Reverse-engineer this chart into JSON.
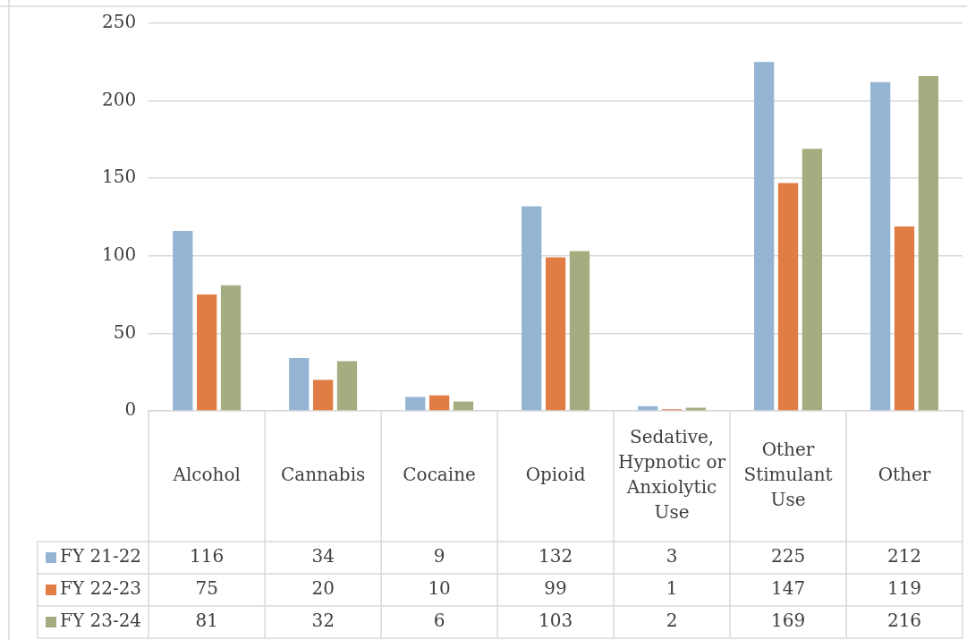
{
  "chart_data": {
    "type": "bar",
    "categories": [
      "Alcohol",
      "Cannabis",
      "Cocaine",
      "Opioid",
      "Sedative, Hypnotic or Anxiolytic Use",
      "Other Stimulant Use",
      "Other"
    ],
    "series": [
      {
        "name": "FY 21-22",
        "color": "#93b5d3",
        "values": [
          116,
          34,
          9,
          132,
          3,
          225,
          212
        ]
      },
      {
        "name": "FY 22-23",
        "color": "#e07d45",
        "values": [
          75,
          20,
          10,
          99,
          1,
          147,
          119
        ]
      },
      {
        "name": "FY 23-24",
        "color": "#a3ad80",
        "values": [
          81,
          32,
          6,
          103,
          2,
          169,
          216
        ]
      }
    ],
    "ylim": [
      0,
      250
    ],
    "yticks": [
      0,
      50,
      100,
      150,
      200,
      250
    ],
    "grid": "y",
    "legend": "left",
    "data_labels": true
  }
}
